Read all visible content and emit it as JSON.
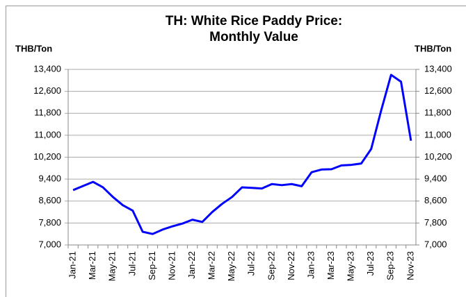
{
  "chart_data": {
    "type": "line",
    "title": [
      "TH: White Rice Paddy Price:",
      "Monthly Value"
    ],
    "y_label": "THB/Ton",
    "y2_label": "THB/Ton",
    "categories": [
      "Jan-21",
      null,
      "Mar-21",
      null,
      "May-21",
      null,
      "Jul-21",
      null,
      "Sep-21",
      null,
      "Nov-21",
      null,
      "Jan-22",
      null,
      "Mar-22",
      null,
      "May-22",
      null,
      "Jul-22",
      null,
      "Sep-22",
      null,
      "Nov-22",
      null,
      "Jan-23",
      null,
      "Mar-23",
      null,
      "May-23",
      null,
      "Jul-23",
      null,
      "Sep-23",
      null,
      "Nov-23"
    ],
    "series": [
      {
        "name": "White Rice Paddy Price",
        "color": "#0000ff",
        "values": [
          9000,
          9150,
          9300,
          9100,
          8750,
          8450,
          8250,
          7480,
          7400,
          7560,
          7680,
          7780,
          7920,
          7840,
          8200,
          8500,
          8750,
          9100,
          9080,
          9060,
          9220,
          9180,
          9220,
          9140,
          9650,
          9750,
          9760,
          9900,
          9920,
          9970,
          10500,
          11900,
          13200,
          12950,
          10800
        ]
      }
    ],
    "ylim": [
      7000,
      13400
    ],
    "yticks": [
      {
        "value": 7000,
        "label": "7,000"
      },
      {
        "value": 7800,
        "label": "7,800"
      },
      {
        "value": 8600,
        "label": "8,600"
      },
      {
        "value": 9400,
        "label": "9,400"
      },
      {
        "value": 10200,
        "label": "10,200"
      },
      {
        "value": 11000,
        "label": "11,000"
      },
      {
        "value": 11800,
        "label": "11,800"
      },
      {
        "value": 12600,
        "label": "12,600"
      },
      {
        "value": 13400,
        "label": "13,400"
      }
    ],
    "y2lim": [
      7000,
      13400
    ],
    "y2ticks": [
      {
        "value": 7000,
        "label": "7,000"
      },
      {
        "value": 7800,
        "label": "7,800"
      },
      {
        "value": 8600,
        "label": "8,600"
      },
      {
        "value": 9400,
        "label": "9,400"
      },
      {
        "value": 10200,
        "label": "10,200"
      },
      {
        "value": 11000,
        "label": "11,000"
      },
      {
        "value": 11800,
        "label": "11,800"
      },
      {
        "value": 12600,
        "label": "12,600"
      },
      {
        "value": 13400,
        "label": "13,400"
      }
    ],
    "grid": true
  }
}
